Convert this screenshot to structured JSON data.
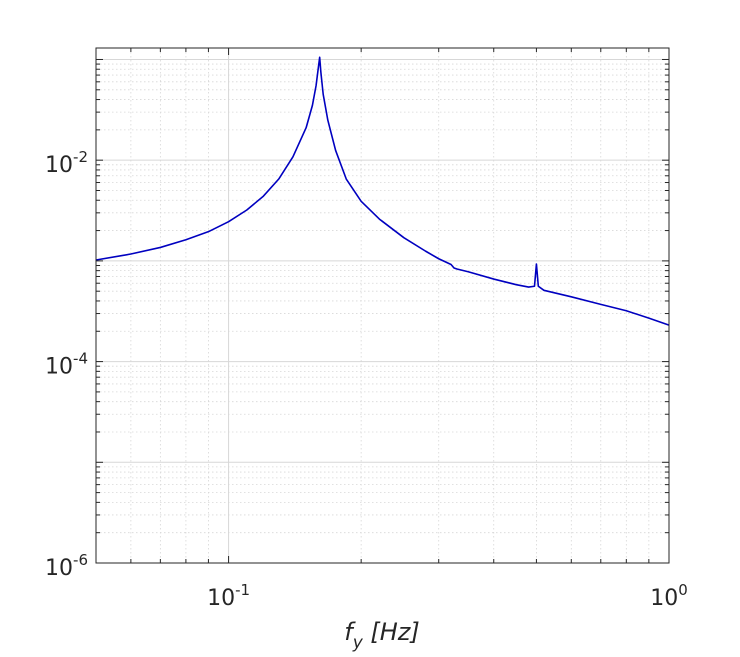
{
  "chart_data": {
    "type": "line",
    "title": "",
    "xlabel": "f_y [Hz]",
    "xlabel_parts": {
      "main": "f",
      "sub": "y",
      "rest": " [Hz]"
    },
    "ylabel": "",
    "xscale": "log",
    "yscale": "log",
    "xlim": [
      0.05,
      1.0
    ],
    "ylim": [
      1e-06,
      0.13
    ],
    "grid": true,
    "minor_grid": true,
    "x_ticks": [
      {
        "value": 0.1,
        "base": "10",
        "exp": "-1"
      },
      {
        "value": 1.0,
        "base": "10",
        "exp": "0"
      }
    ],
    "y_ticks": [
      {
        "value": 1e-06,
        "base": "10",
        "exp": "-6"
      },
      {
        "value": 0.0001,
        "base": "10",
        "exp": "-4"
      },
      {
        "value": 0.01,
        "base": "10",
        "exp": "-2"
      }
    ],
    "series": [
      {
        "color": "#0000c0",
        "points": [
          [
            0.05,
            0.00102
          ],
          [
            0.06,
            0.00117
          ],
          [
            0.07,
            0.00136
          ],
          [
            0.08,
            0.00162
          ],
          [
            0.09,
            0.00195
          ],
          [
            0.1,
            0.00245
          ],
          [
            0.11,
            0.0032
          ],
          [
            0.12,
            0.0044
          ],
          [
            0.13,
            0.0065
          ],
          [
            0.14,
            0.0108
          ],
          [
            0.15,
            0.021
          ],
          [
            0.155,
            0.035
          ],
          [
            0.158,
            0.055
          ],
          [
            0.16,
            0.085
          ],
          [
            0.161,
            0.105
          ],
          [
            0.162,
            0.075
          ],
          [
            0.164,
            0.045
          ],
          [
            0.168,
            0.025
          ],
          [
            0.175,
            0.0125
          ],
          [
            0.185,
            0.0065
          ],
          [
            0.2,
            0.0039
          ],
          [
            0.22,
            0.0026
          ],
          [
            0.25,
            0.0017
          ],
          [
            0.28,
            0.00125
          ],
          [
            0.3,
            0.00105
          ],
          [
            0.32,
            0.00092
          ],
          [
            0.325,
            0.00085
          ],
          [
            0.33,
            0.00083
          ],
          [
            0.35,
            0.00078
          ],
          [
            0.4,
            0.00066
          ],
          [
            0.45,
            0.00058
          ],
          [
            0.48,
            0.00055
          ],
          [
            0.495,
            0.00056
          ],
          [
            0.5,
            0.00093
          ],
          [
            0.505,
            0.00056
          ],
          [
            0.52,
            0.00051
          ],
          [
            0.6,
            0.00044
          ],
          [
            0.7,
            0.00037
          ],
          [
            0.8,
            0.00032
          ],
          [
            0.9,
            0.00027
          ],
          [
            1.0,
            0.00023
          ]
        ]
      }
    ]
  }
}
